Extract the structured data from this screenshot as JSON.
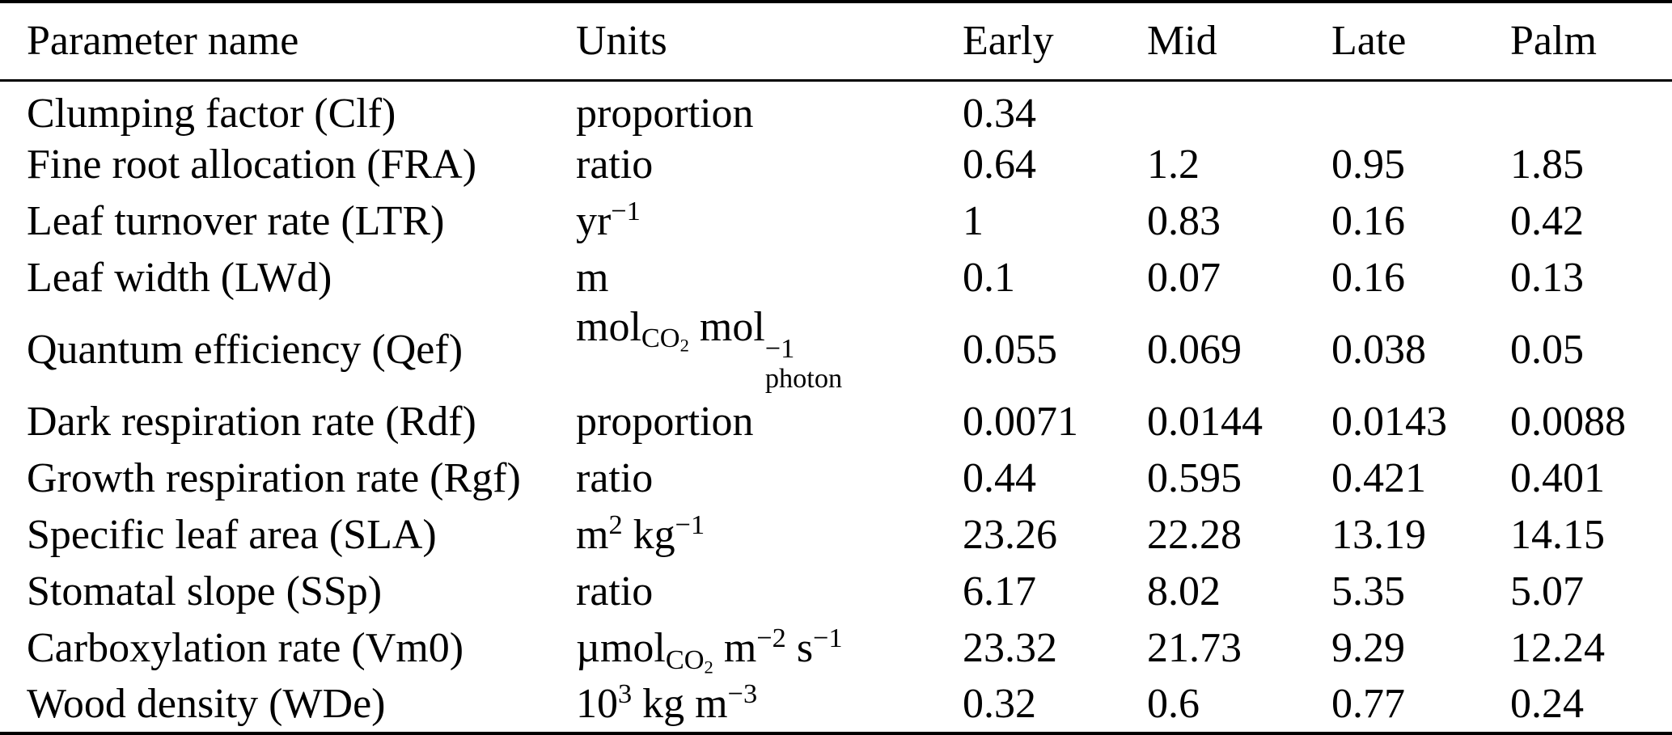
{
  "table": {
    "columns": [
      "Parameter name",
      "Units",
      "Early",
      "Mid",
      "Late",
      "Palm"
    ],
    "rows": [
      {
        "name": "Clumping factor (Clf)",
        "units": "proportion",
        "early": "0.34",
        "mid": "",
        "late": "",
        "palm": ""
      },
      {
        "name": "Fine root allocation (FRA)",
        "units": "ratio",
        "early": "0.64",
        "mid": "1.2",
        "late": "0.95",
        "palm": "1.85"
      },
      {
        "name": "Leaf turnover rate (LTR)",
        "units": "yr^{−1}",
        "early": "1",
        "mid": "0.83",
        "late": "0.16",
        "palm": "0.42"
      },
      {
        "name": "Leaf width (LWd)",
        "units": "m",
        "early": "0.1",
        "mid": "0.07",
        "late": "0.16",
        "palm": "0.13"
      },
      {
        "name": "Quantum efficiency (Qef)",
        "units": "mol_{CO_{2}} mol^{−1}_{photon}",
        "early": "0.055",
        "mid": "0.069",
        "late": "0.038",
        "palm": "0.05"
      },
      {
        "name": "Dark respiration rate (Rdf)",
        "units": "proportion",
        "early": "0.0071",
        "mid": "0.0144",
        "late": "0.0143",
        "palm": "0.0088"
      },
      {
        "name": "Growth respiration rate (Rgf)",
        "units": "ratio",
        "early": "0.44",
        "mid": "0.595",
        "late": "0.421",
        "palm": "0.401"
      },
      {
        "name": "Specific leaf area (SLA)",
        "units": "m^{2} kg^{−1}",
        "early": "23.26",
        "mid": "22.28",
        "late": "13.19",
        "palm": "14.15"
      },
      {
        "name": "Stomatal slope (SSp)",
        "units": "ratio",
        "early": "6.17",
        "mid": "8.02",
        "late": "5.35",
        "palm": "5.07"
      },
      {
        "name": "Carboxylation rate (Vm0)",
        "units": "µmol_{CO_{2}} m^{−2} s^{−1}",
        "early": "23.32",
        "mid": "21.73",
        "late": "9.29",
        "palm": "12.24"
      },
      {
        "name": "Wood density (WDe)",
        "units": "10^{3} kg m^{−3}",
        "early": "0.32",
        "mid": "0.6",
        "late": "0.77",
        "palm": "0.24"
      }
    ],
    "colors": {
      "text": "#000000",
      "background": "#ffffff",
      "rule": "#000000"
    }
  }
}
